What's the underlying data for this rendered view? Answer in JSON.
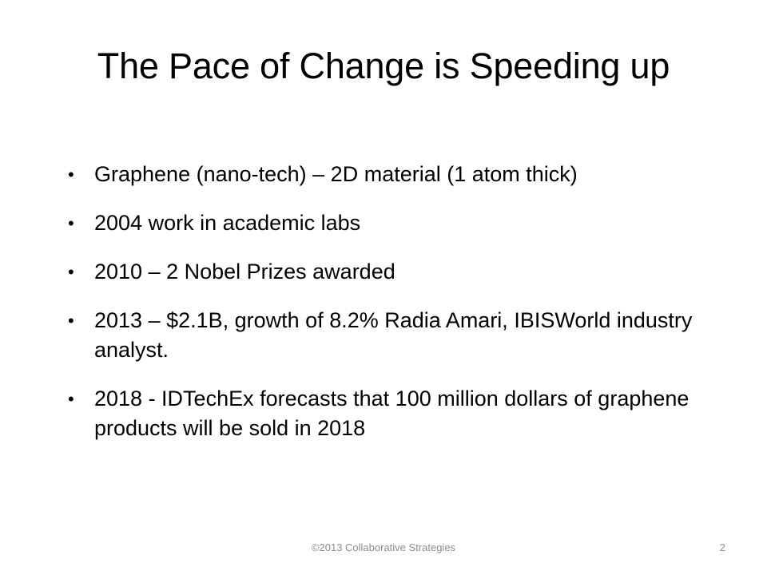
{
  "slide": {
    "title": "The Pace of Change is Speeding up",
    "bullets": [
      "Graphene (nano-tech) – 2D material (1 atom thick)",
      "2004 work in academic labs",
      "2010 – 2 Nobel Prizes awarded",
      "2013 – $2.1B, growth of 8.2% Radia Amari, IBISWorld industry analyst.",
      "2018 - IDTechEx forecasts that 100 million dollars of graphene products will be sold in 2018"
    ],
    "bullet_symbol": "•",
    "footer": "©2013 Collaborative Strategies",
    "page_number": "2"
  }
}
